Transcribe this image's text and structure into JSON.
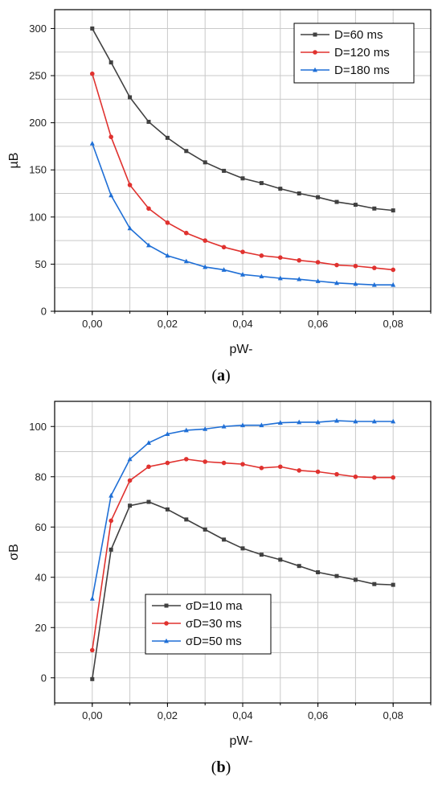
{
  "chart_data": [
    {
      "type": "line",
      "panel": "a",
      "caption_letter": "a",
      "xlabel": "pW-",
      "ylabel": "µB",
      "xlim": [
        -0.01,
        0.09
      ],
      "ylim": [
        0,
        320
      ],
      "xticks": [
        "0,00",
        "0,02",
        "0,04",
        "0,06",
        "0,08"
      ],
      "xtick_values": [
        0.0,
        0.02,
        0.04,
        0.06,
        0.08
      ],
      "yticks": [
        0,
        50,
        100,
        150,
        200,
        250,
        300
      ],
      "grid": true,
      "legend_position": "top-right",
      "x": [
        0.0,
        0.005,
        0.01,
        0.015,
        0.02,
        0.025,
        0.03,
        0.035,
        0.04,
        0.045,
        0.05,
        0.055,
        0.06,
        0.065,
        0.07,
        0.075,
        0.08
      ],
      "series": [
        {
          "name": "D=60 ms",
          "color": "#404040",
          "marker": "square",
          "values": [
            300,
            264,
            227,
            201,
            184,
            170,
            158,
            149,
            141,
            136,
            130,
            125,
            121,
            116,
            113,
            109,
            107
          ]
        },
        {
          "name": "D=120 ms",
          "color": "#e0322f",
          "marker": "circle",
          "values": [
            252,
            185,
            134,
            109,
            94,
            83,
            75,
            68,
            63,
            59,
            57,
            54,
            52,
            49,
            48,
            46,
            44
          ]
        },
        {
          "name": "D=180 ms",
          "color": "#1f6fd6",
          "marker": "triangle",
          "values": [
            178,
            123,
            88,
            70,
            59,
            53,
            47,
            44,
            39,
            37,
            35,
            34,
            32,
            30,
            29,
            28,
            28
          ]
        }
      ]
    },
    {
      "type": "line",
      "panel": "b",
      "caption_letter": "b",
      "xlabel": "pW-",
      "ylabel": "σB",
      "xlim": [
        -0.01,
        0.09
      ],
      "ylim": [
        -10,
        110
      ],
      "xticks": [
        "0,00",
        "0,02",
        "0,04",
        "0,06",
        "0,08"
      ],
      "xtick_values": [
        0.0,
        0.02,
        0.04,
        0.06,
        0.08
      ],
      "yticks": [
        0,
        20,
        40,
        60,
        80,
        100
      ],
      "grid": true,
      "legend_position": "bottom-left",
      "x": [
        0.0,
        0.005,
        0.01,
        0.015,
        0.02,
        0.025,
        0.03,
        0.035,
        0.04,
        0.045,
        0.05,
        0.055,
        0.06,
        0.065,
        0.07,
        0.075,
        0.08
      ],
      "series": [
        {
          "name": "σD=10 ma",
          "color": "#404040",
          "marker": "square",
          "values": [
            -0.5,
            51,
            68.5,
            70,
            67,
            63,
            59,
            55,
            51.5,
            49,
            47,
            44.5,
            42,
            40.5,
            39,
            37.3,
            37
          ]
        },
        {
          "name": "σD=30 ms",
          "color": "#e0322f",
          "marker": "circle",
          "values": [
            11,
            62.5,
            78.5,
            84,
            85.5,
            87,
            86,
            85.5,
            85,
            83.5,
            84,
            82.5,
            82,
            81,
            80,
            79.7,
            79.7
          ]
        },
        {
          "name": "σD=50 ms",
          "color": "#1f6fd6",
          "marker": "triangle",
          "values": [
            31.5,
            72.5,
            87,
            93.5,
            97,
            98.5,
            99,
            100,
            100.5,
            100.5,
            101.5,
            101.7,
            101.7,
            102.3,
            102,
            102,
            102
          ]
        }
      ]
    }
  ]
}
